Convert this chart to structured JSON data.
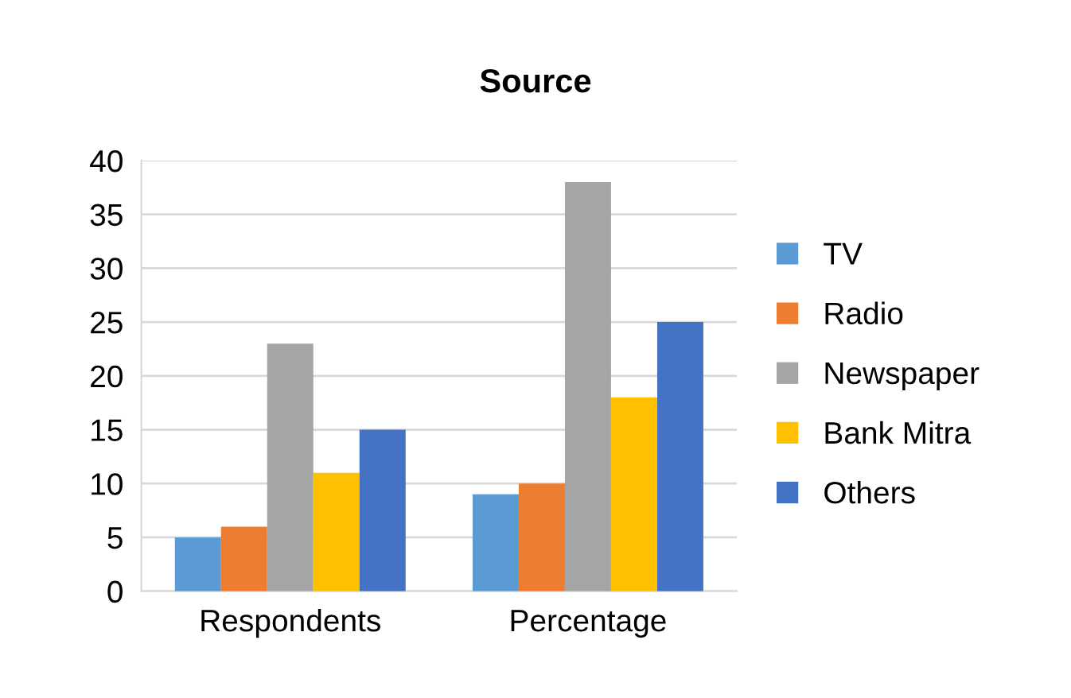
{
  "chart_data": {
    "type": "bar",
    "title": "Source",
    "categories": [
      "Respondents",
      "Percentage"
    ],
    "series": [
      {
        "name": "TV",
        "color": "#5b9bd5",
        "values": [
          5,
          9
        ]
      },
      {
        "name": "Radio",
        "color": "#ed7d31",
        "values": [
          6,
          10
        ]
      },
      {
        "name": "Newspaper",
        "color": "#a5a5a5",
        "values": [
          23,
          38
        ]
      },
      {
        "name": "Bank Mitra",
        "color": "#ffc000",
        "values": [
          11,
          18
        ]
      },
      {
        "name": "Others",
        "color": "#4472c4",
        "values": [
          15,
          25
        ]
      }
    ],
    "ylim": [
      0,
      40
    ],
    "yticks": [
      0,
      5,
      10,
      15,
      20,
      25,
      30,
      35,
      40
    ],
    "grid": "y",
    "legend": "right"
  }
}
